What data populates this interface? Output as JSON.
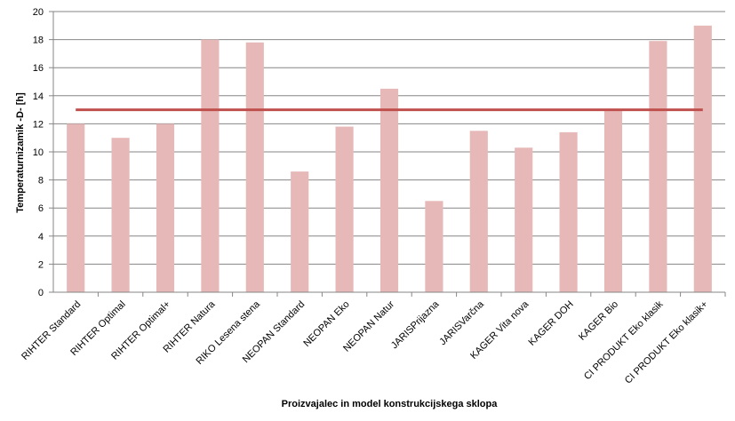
{
  "chart_data": {
    "type": "bar",
    "xlabel": "Proizvajalec in model konstrukcijskega  sklopa",
    "ylabel": "Temperaturnizamik -D- [h]",
    "ylim": [
      0,
      20
    ],
    "yticks": [
      0,
      2,
      4,
      6,
      8,
      10,
      12,
      14,
      16,
      18,
      20
    ],
    "grid": true,
    "categories": [
      "RIHTER Standard",
      "RIHTER Optimal",
      "RIHTER Optimal+",
      "RIHTER Natura",
      "RIKO Lesena stena",
      "NEOPAN Standard",
      "NEOPAN Eko",
      "NEOPAN Natur",
      "JARISPrijazna",
      "JARISVarčna",
      "KAGER Vita nova",
      "KAGER DOH",
      "KAGER Bio",
      "CI PRODUKT Eko klasik",
      "CI PRODUKT Eko klasik+"
    ],
    "values": [
      12,
      11,
      12,
      18,
      17.8,
      8.6,
      11.8,
      14.5,
      6.5,
      11.5,
      10.3,
      11.4,
      13,
      17.9,
      19
    ],
    "reference_line": 13,
    "colors": {
      "bar": "#E6B9B8",
      "reference_line": "#C0504D",
      "grid": "#868686",
      "axis": "#868686"
    }
  }
}
